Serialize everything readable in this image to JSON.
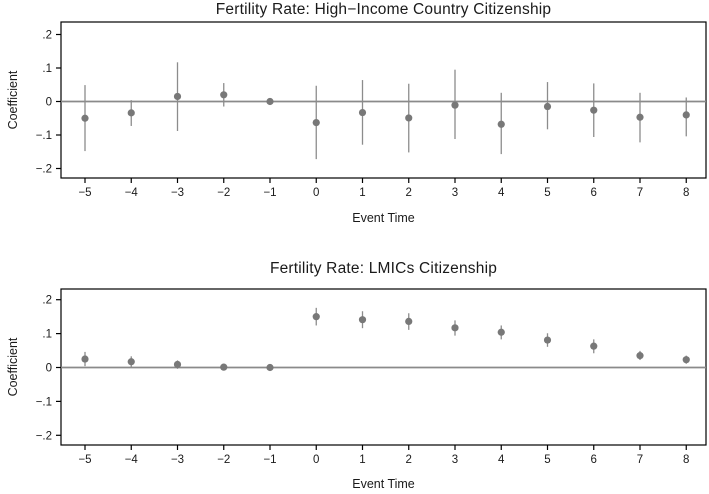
{
  "colors": {
    "background": "#ffffff",
    "marker": "#787878",
    "whisker": "#8c8c8c",
    "zero_line": "#8a8a8a",
    "axis": "#000000",
    "text": "#1a1a1a"
  },
  "chart_data": [
    {
      "type": "scatter",
      "subtype": "event-study-coefficient-plot",
      "title": "Fertility Rate: High−Income Country Citizenship",
      "xlabel": "Event Time",
      "ylabel": "Coefficient",
      "grid": false,
      "zero_line": true,
      "reference_x": -1,
      "ylim": [
        -0.23,
        0.24
      ],
      "x": [
        -5,
        -4,
        -3,
        -2,
        -1,
        0,
        1,
        2,
        3,
        4,
        5,
        6,
        7,
        8
      ],
      "xtick_labels": [
        "−5",
        "−4",
        "−3",
        "−2",
        "−1",
        "0",
        "1",
        "2",
        "3",
        "4",
        "5",
        "6",
        "7",
        "8"
      ],
      "yticks": [
        0.2,
        0.1,
        0,
        -0.1,
        -0.2
      ],
      "ytick_labels": [
        ".2",
        ".1",
        "0",
        "−.1",
        "−.2"
      ],
      "series": [
        {
          "name": "coefficient",
          "estimates": [
            -0.05,
            -0.034,
            0.015,
            0.02,
            0.0,
            -0.063,
            -0.033,
            -0.049,
            -0.011,
            -0.068,
            -0.015,
            -0.026,
            -0.047,
            -0.04
          ],
          "ci_low": [
            -0.148,
            -0.073,
            -0.088,
            -0.015,
            null,
            -0.172,
            -0.129,
            -0.152,
            -0.112,
            -0.157,
            -0.083,
            -0.106,
            -0.122,
            -0.104
          ],
          "ci_high": [
            0.049,
            0.004,
            0.117,
            0.055,
            null,
            0.047,
            0.064,
            0.053,
            0.095,
            0.026,
            0.058,
            0.054,
            0.026,
            0.012
          ]
        }
      ]
    },
    {
      "type": "scatter",
      "subtype": "event-study-coefficient-plot",
      "title": "Fertility Rate: LMICs Citizenship",
      "xlabel": "Event Time",
      "ylabel": "Coefficient",
      "grid": false,
      "zero_line": true,
      "reference_x": -1,
      "ylim": [
        -0.23,
        0.23
      ],
      "x": [
        -5,
        -4,
        -3,
        -2,
        -1,
        0,
        1,
        2,
        3,
        4,
        5,
        6,
        7,
        8
      ],
      "xtick_labels": [
        "−5",
        "−4",
        "−3",
        "−2",
        "−1",
        "0",
        "1",
        "2",
        "3",
        "4",
        "5",
        "6",
        "7",
        "8"
      ],
      "yticks": [
        0.2,
        0.1,
        0,
        -0.1,
        -0.2
      ],
      "ytick_labels": [
        ".2",
        ".1",
        "0",
        "−.1",
        "−.2"
      ],
      "series": [
        {
          "name": "coefficient",
          "estimates": [
            0.025,
            0.017,
            0.009,
            0.001,
            0.0,
            0.15,
            0.141,
            0.136,
            0.117,
            0.104,
            0.081,
            0.063,
            0.035,
            0.023
          ],
          "ci_low": [
            0.004,
            0.001,
            -0.004,
            -0.008,
            null,
            0.124,
            0.116,
            0.111,
            0.094,
            0.083,
            0.061,
            0.042,
            0.022,
            0.011
          ],
          "ci_high": [
            0.046,
            0.033,
            0.021,
            0.01,
            null,
            0.176,
            0.166,
            0.16,
            0.139,
            0.124,
            0.101,
            0.083,
            0.049,
            0.035
          ]
        }
      ]
    }
  ]
}
